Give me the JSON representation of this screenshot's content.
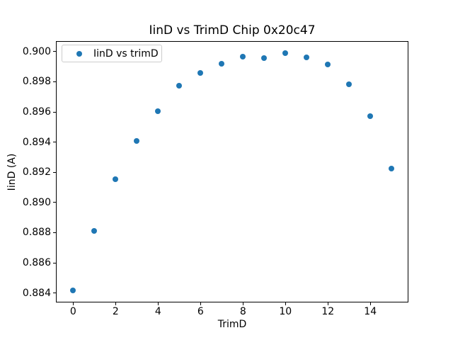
{
  "figure": {
    "background": "#ffffff",
    "text_color": "#000000",
    "spine_color": "#000000",
    "legend_border_color": "#cccccc"
  },
  "chart_data": {
    "type": "scatter",
    "title": "IinD vs TrimD Chip 0x20c47",
    "xlabel": "TrimD",
    "ylabel": "IinD (A)",
    "grid": false,
    "legend": {
      "position": "upper left",
      "entries": [
        {
          "label": "IinD vs trimD",
          "marker": "circle",
          "color": "#1f77b4"
        }
      ]
    },
    "xlim": [
      -0.78,
      15.76
    ],
    "ylim": [
      0.88342,
      0.90065
    ],
    "x_ticks": [
      {
        "v": 0,
        "label": "0"
      },
      {
        "v": 2,
        "label": "2"
      },
      {
        "v": 4,
        "label": "4"
      },
      {
        "v": 6,
        "label": "6"
      },
      {
        "v": 8,
        "label": "8"
      },
      {
        "v": 10,
        "label": "10"
      },
      {
        "v": 12,
        "label": "12"
      },
      {
        "v": 14,
        "label": "14"
      }
    ],
    "y_ticks": [
      {
        "v": 0.884,
        "label": "0.884"
      },
      {
        "v": 0.886,
        "label": "0.886"
      },
      {
        "v": 0.888,
        "label": "0.888"
      },
      {
        "v": 0.89,
        "label": "0.890"
      },
      {
        "v": 0.892,
        "label": "0.892"
      },
      {
        "v": 0.894,
        "label": "0.894"
      },
      {
        "v": 0.896,
        "label": "0.896"
      },
      {
        "v": 0.898,
        "label": "0.898"
      },
      {
        "v": 0.9,
        "label": "0.900"
      }
    ],
    "series": [
      {
        "name": "IinD vs trimD",
        "color": "#1f77b4",
        "marker": "circle",
        "x": [
          0,
          1,
          2,
          3,
          4,
          5,
          6,
          7,
          8,
          9,
          10,
          11,
          12,
          13,
          14,
          15
        ],
        "y": [
          0.88415,
          0.8881,
          0.89155,
          0.8941,
          0.89605,
          0.89775,
          0.8986,
          0.8992,
          0.89965,
          0.89955,
          0.8999,
          0.8996,
          0.89915,
          0.89785,
          0.8957,
          0.89225
        ]
      }
    ]
  }
}
